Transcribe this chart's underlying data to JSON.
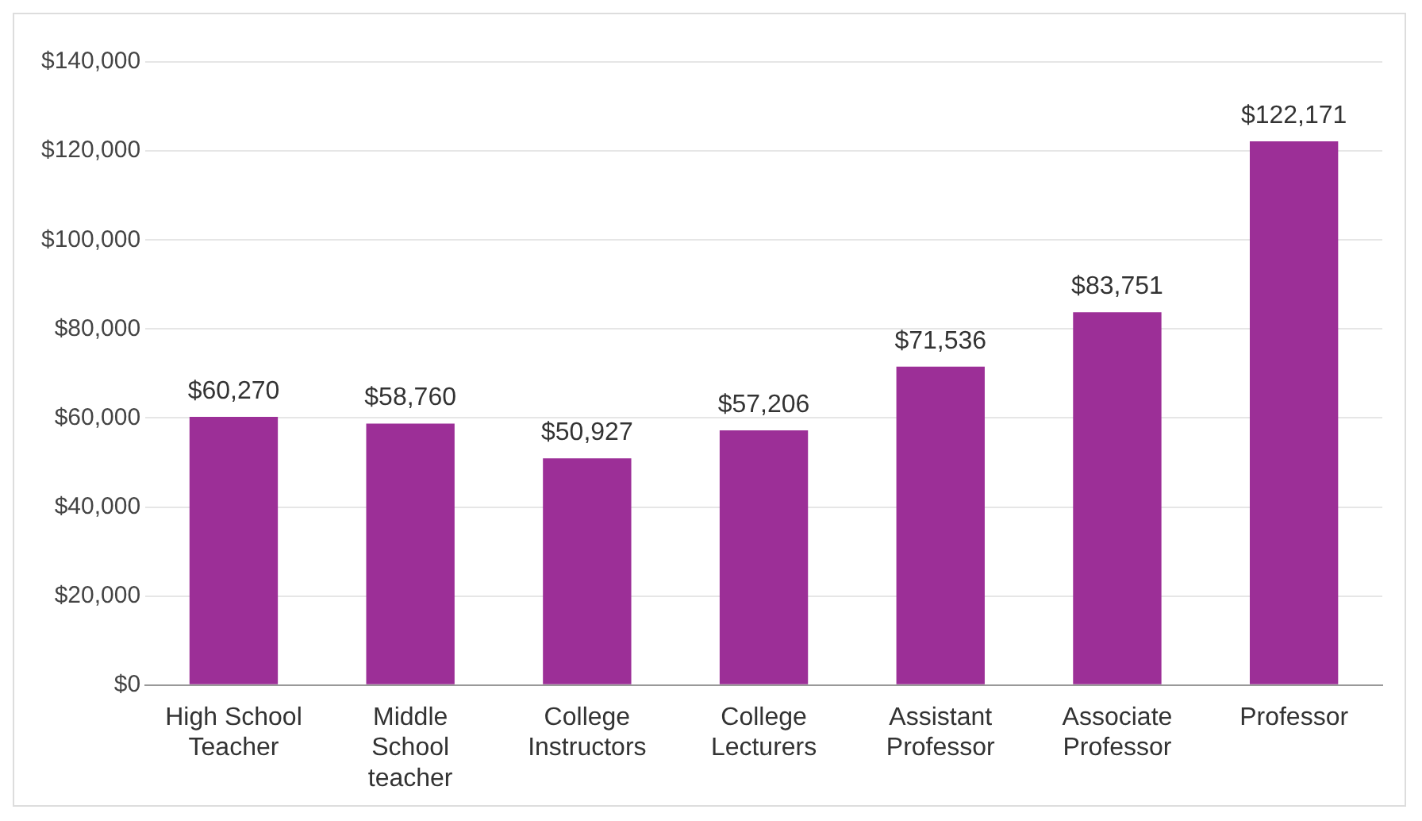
{
  "chart_data": {
    "type": "bar",
    "categories": [
      "High School Teacher",
      "Middle School teacher",
      "College Instructors",
      "College Lecturers",
      "Assistant Professor",
      "Associate Professor",
      "Professor"
    ],
    "values": [
      60270,
      58760,
      50927,
      57206,
      71536,
      83751,
      122171
    ],
    "value_labels": [
      "$60,270",
      "$58,760",
      "$50,927",
      "$57,206",
      "$71,536",
      "$83,751",
      "$122,171"
    ],
    "color": "#9c2f97",
    "ylim": [
      0,
      140000
    ],
    "yticks": [
      {
        "value": 0,
        "label": "$0"
      },
      {
        "value": 20000,
        "label": "$20,000"
      },
      {
        "value": 40000,
        "label": "$40,000"
      },
      {
        "value": 60000,
        "label": "$60,000"
      },
      {
        "value": 80000,
        "label": "$80,000"
      },
      {
        "value": 100000,
        "label": "$100,000"
      },
      {
        "value": 120000,
        "label": "$120,000"
      },
      {
        "value": 140000,
        "label": "$140,000"
      }
    ],
    "grid": "y"
  }
}
